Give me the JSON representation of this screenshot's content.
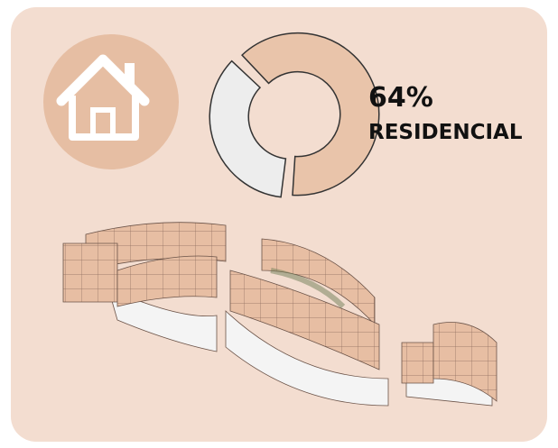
{
  "chart_data": {
    "type": "donut",
    "categories": [
      "RESIDENCIAL",
      null
    ],
    "values": [
      64,
      36
    ],
    "value_labels": [
      "64%",
      null
    ],
    "colors": [
      "#e9c4aa",
      "#ededed"
    ]
  }
}
